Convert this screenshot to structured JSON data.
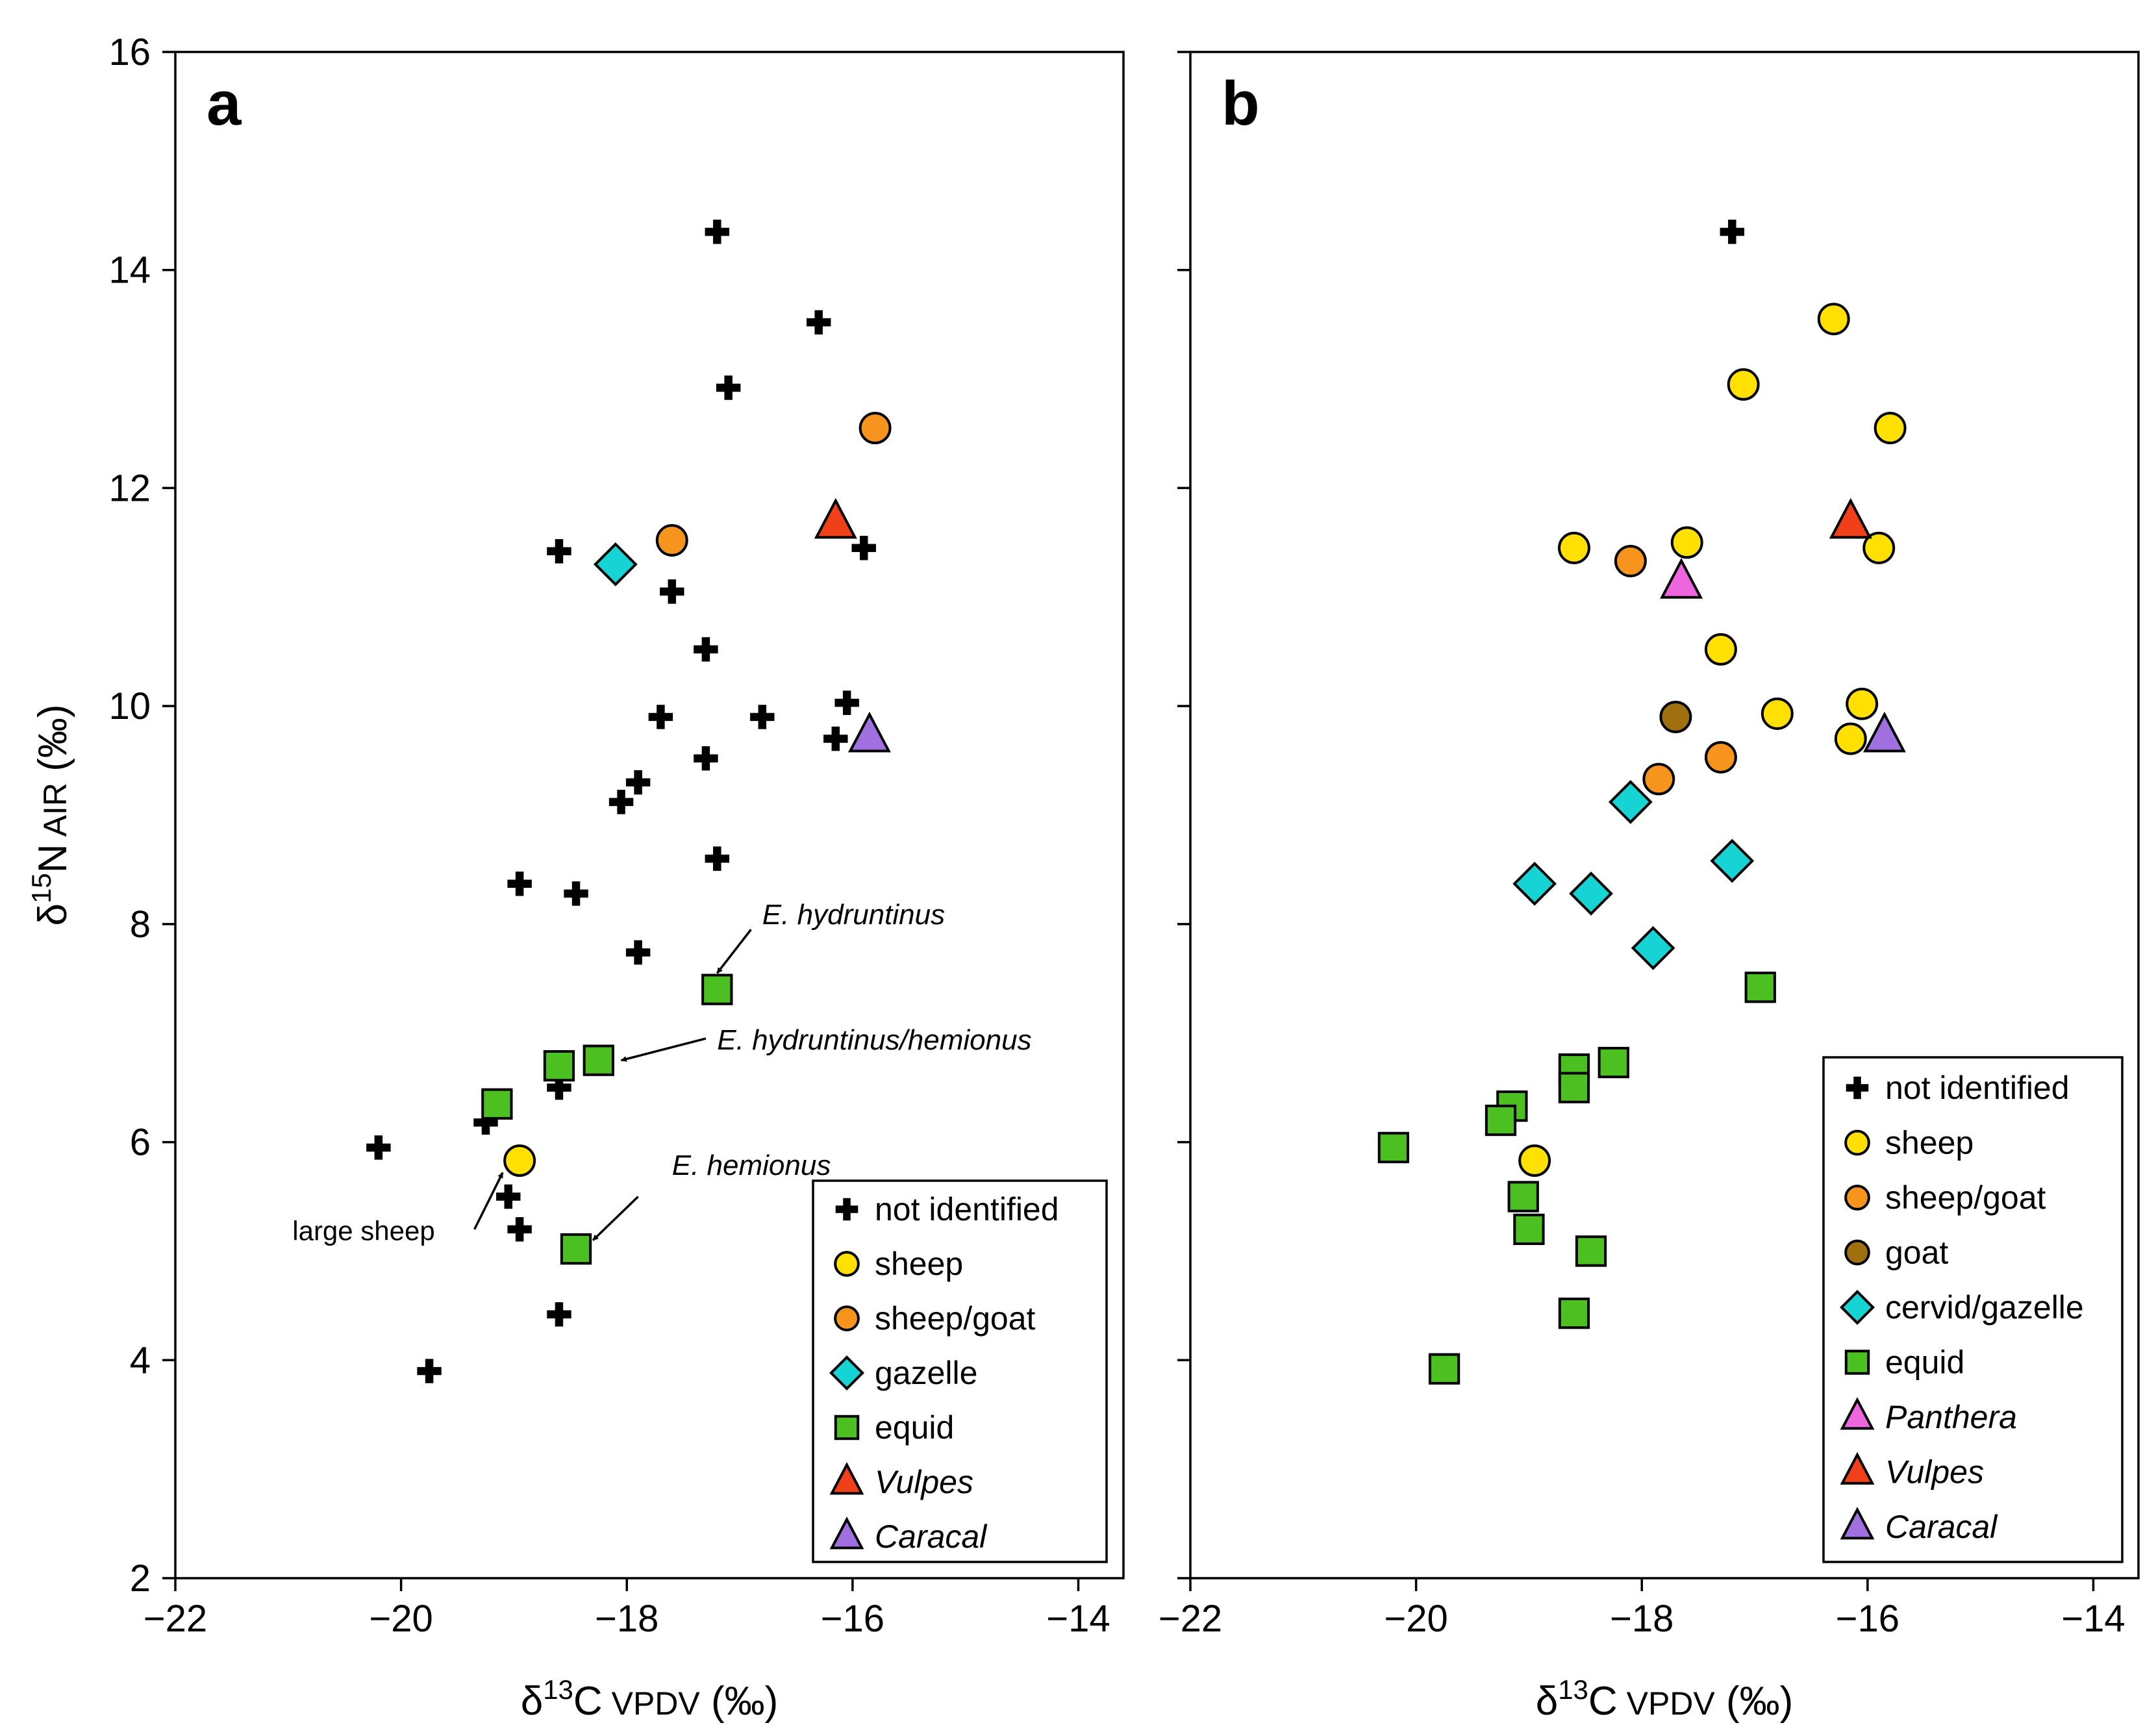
{
  "legend_a_items": [
    {
      "key": "not_identified",
      "label": "not identified",
      "italic": false
    },
    {
      "key": "sheep",
      "label": "sheep",
      "italic": false
    },
    {
      "key": "sheep_goat",
      "label": "sheep/goat",
      "italic": false
    },
    {
      "key": "gazelle",
      "label": "gazelle",
      "italic": false
    },
    {
      "key": "equid",
      "label": "equid",
      "italic": false
    },
    {
      "key": "vulpes",
      "label": "Vulpes",
      "italic": true
    },
    {
      "key": "caracal",
      "label": "Caracal",
      "italic": true
    }
  ],
  "legend_b_items": [
    {
      "key": "not_identified",
      "label": "not identified",
      "italic": false
    },
    {
      "key": "sheep",
      "label": "sheep",
      "italic": false
    },
    {
      "key": "sheep_goat",
      "label": "sheep/goat",
      "italic": false
    },
    {
      "key": "goat",
      "label": "goat",
      "italic": false
    },
    {
      "key": "cervid_gazelle",
      "label": "cervid/gazelle",
      "italic": false
    },
    {
      "key": "equid",
      "label": "equid",
      "italic": false
    },
    {
      "key": "panthera",
      "label": "Panthera",
      "italic": true
    },
    {
      "key": "vulpes",
      "label": "Vulpes",
      "italic": true
    },
    {
      "key": "caracal",
      "label": "Caracal",
      "italic": true
    }
  ],
  "styles": {
    "not_identified": {
      "marker": "cross",
      "fill": "#000000"
    },
    "sheep": {
      "marker": "circle",
      "fill": "#FFE000"
    },
    "sheep_goat": {
      "marker": "circle",
      "fill": "#F7941D"
    },
    "goat": {
      "marker": "circle",
      "fill": "#A0700F"
    },
    "gazelle": {
      "marker": "diamond",
      "fill": "#17D4D4"
    },
    "cervid_gazelle": {
      "marker": "diamond",
      "fill": "#17D4D4"
    },
    "equid": {
      "marker": "square",
      "fill": "#4CC020"
    },
    "panthera": {
      "marker": "triangle",
      "fill": "#EE66DD"
    },
    "vulpes": {
      "marker": "triangle",
      "fill": "#F0401A"
    },
    "caracal": {
      "marker": "triangle",
      "fill": "#A070E0"
    }
  },
  "chart_data": [
    {
      "type": "scatter",
      "panel_label": "a",
      "xlabel": {
        "delta": "δ",
        "sup": "13",
        "element": "C",
        "ref": "VPDV",
        "unit": "(‰)"
      },
      "ylabel": {
        "delta": "δ",
        "sup": "15",
        "element": "N",
        "ref": "AIR",
        "unit": "(‰)"
      },
      "xlim": [
        -22,
        -13.6
      ],
      "ylim": [
        2,
        16
      ],
      "x_ticks": [
        -22,
        -20,
        -18,
        -16,
        -14
      ],
      "x_tick_labels": [
        "−22",
        "−20",
        "−18",
        "−16",
        "−14"
      ],
      "y_ticks": [
        2,
        4,
        6,
        8,
        10,
        12,
        14,
        16
      ],
      "y_tick_labels": [
        "2",
        "4",
        "6",
        "8",
        "10",
        "12",
        "14",
        "16"
      ],
      "grid": false,
      "legend_position": "bottom-right",
      "series": [
        {
          "key": "not_identified",
          "points": [
            [
              -17.2,
              14.35
            ],
            [
              -16.3,
              13.52
            ],
            [
              -17.1,
              12.92
            ],
            [
              -18.6,
              11.42
            ],
            [
              -15.9,
              11.45
            ],
            [
              -17.6,
              11.05
            ],
            [
              -17.3,
              10.52
            ],
            [
              -17.7,
              9.9
            ],
            [
              -16.8,
              9.9
            ],
            [
              -16.05,
              10.03
            ],
            [
              -16.15,
              9.7
            ],
            [
              -17.3,
              9.52
            ],
            [
              -17.9,
              9.3
            ],
            [
              -18.05,
              9.12
            ],
            [
              -17.2,
              8.6
            ],
            [
              -18.95,
              8.37
            ],
            [
              -18.45,
              8.28
            ],
            [
              -17.9,
              7.74
            ],
            [
              -18.6,
              6.5
            ],
            [
              -19.25,
              6.18
            ],
            [
              -20.2,
              5.95
            ],
            [
              -19.05,
              5.5
            ],
            [
              -18.95,
              5.2
            ],
            [
              -18.6,
              4.42
            ],
            [
              -19.75,
              3.9
            ]
          ]
        },
        {
          "key": "sheep",
          "points": [
            [
              -18.95,
              5.83
            ]
          ]
        },
        {
          "key": "sheep_goat",
          "points": [
            [
              -15.8,
              12.55
            ],
            [
              -17.6,
              11.52
            ]
          ]
        },
        {
          "key": "gazelle",
          "points": [
            [
              -18.1,
              11.3
            ]
          ]
        },
        {
          "key": "equid",
          "points": [
            [
              -17.2,
              7.4
            ],
            [
              -18.6,
              6.7
            ],
            [
              -18.25,
              6.75
            ],
            [
              -19.15,
              6.35
            ],
            [
              -18.45,
              5.02
            ]
          ]
        },
        {
          "key": "vulpes",
          "points": [
            [
              -16.15,
              11.68
            ]
          ]
        },
        {
          "key": "caracal",
          "points": [
            [
              -15.85,
              9.72
            ]
          ]
        }
      ],
      "annotations": [
        {
          "text": "E. hydruntinus",
          "italic": true,
          "text_at": [
            -16.8,
            8.0
          ],
          "arrow_from": [
            -16.9,
            7.95
          ],
          "arrow_to": [
            -17.2,
            7.55
          ]
        },
        {
          "text": "E. hydruntinus/hemionus",
          "italic": true,
          "text_at": [
            -17.2,
            6.85
          ],
          "arrow_from": [
            -17.3,
            6.95
          ],
          "arrow_to": [
            -18.05,
            6.75
          ]
        },
        {
          "text": "E. hemionus",
          "italic": true,
          "text_at": [
            -17.6,
            5.7
          ],
          "arrow_from": [
            -17.9,
            5.5
          ],
          "arrow_to": [
            -18.3,
            5.1
          ]
        },
        {
          "text": "large sheep",
          "italic": false,
          "text_at": [
            -19.7,
            5.1
          ],
          "arrow_from": [
            -19.35,
            5.2
          ],
          "arrow_to": [
            -19.1,
            5.72
          ]
        }
      ]
    },
    {
      "type": "scatter",
      "panel_label": "b",
      "xlabel": {
        "delta": "δ",
        "sup": "13",
        "element": "C",
        "ref": "VPDV",
        "unit": "(‰)"
      },
      "xlim": [
        -22,
        -13.6
      ],
      "ylim": [
        2,
        16
      ],
      "x_ticks": [
        -22,
        -20,
        -18,
        -16,
        -14
      ],
      "x_tick_labels": [
        "−22",
        "−20",
        "−18",
        "−16",
        "−14"
      ],
      "y_ticks": [
        2,
        4,
        6,
        8,
        10,
        12,
        14,
        16
      ],
      "grid": false,
      "legend_position": "bottom-right",
      "series": [
        {
          "key": "not_identified",
          "points": [
            [
              -17.2,
              14.35
            ]
          ]
        },
        {
          "key": "sheep",
          "points": [
            [
              -16.3,
              13.55
            ],
            [
              -17.1,
              12.95
            ],
            [
              -15.8,
              12.55
            ],
            [
              -18.6,
              11.45
            ],
            [
              -17.6,
              11.5
            ],
            [
              -15.9,
              11.45
            ],
            [
              -17.3,
              10.52
            ],
            [
              -16.8,
              9.93
            ],
            [
              -16.05,
              10.02
            ],
            [
              -16.15,
              9.7
            ],
            [
              -18.95,
              5.83
            ]
          ]
        },
        {
          "key": "sheep_goat",
          "points": [
            [
              -18.1,
              11.33
            ],
            [
              -17.3,
              9.53
            ],
            [
              -17.85,
              9.33
            ]
          ]
        },
        {
          "key": "goat",
          "points": [
            [
              -17.7,
              9.9
            ]
          ]
        },
        {
          "key": "cervid_gazelle",
          "points": [
            [
              -18.1,
              9.12
            ],
            [
              -17.2,
              8.58
            ],
            [
              -18.95,
              8.37
            ],
            [
              -18.45,
              8.28
            ],
            [
              -17.9,
              7.78
            ]
          ]
        },
        {
          "key": "equid",
          "points": [
            [
              -16.95,
              7.42
            ],
            [
              -18.6,
              6.67
            ],
            [
              -18.25,
              6.73
            ],
            [
              -18.6,
              6.5
            ],
            [
              -19.15,
              6.33
            ],
            [
              -19.25,
              6.2
            ],
            [
              -20.2,
              5.95
            ],
            [
              -19.05,
              5.5
            ],
            [
              -19.0,
              5.2
            ],
            [
              -18.45,
              5.0
            ],
            [
              -18.6,
              4.43
            ],
            [
              -19.75,
              3.92
            ]
          ]
        },
        {
          "key": "panthera",
          "points": [
            [
              -17.65,
              11.13
            ]
          ]
        },
        {
          "key": "vulpes",
          "points": [
            [
              -16.15,
              11.68
            ]
          ]
        },
        {
          "key": "caracal",
          "points": [
            [
              -15.85,
              9.72
            ]
          ]
        }
      ]
    }
  ]
}
